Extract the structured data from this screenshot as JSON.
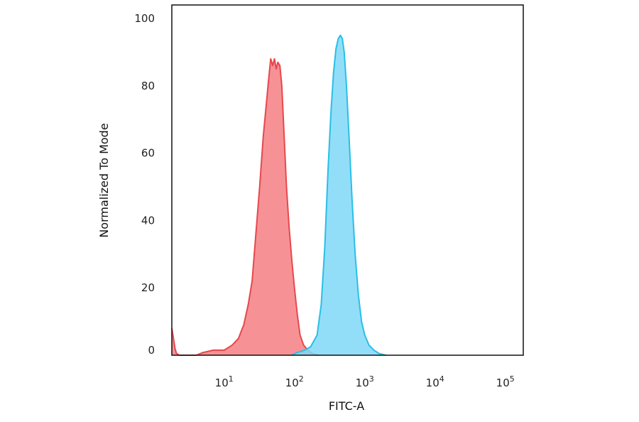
{
  "chart_data": {
    "type": "area",
    "xlabel": "FITC-A",
    "ylabel": "Normalized To Mode",
    "xscale": "log",
    "xlim": [
      1.8,
      180000
    ],
    "ylim": [
      0,
      104
    ],
    "grid": false,
    "yticks": [
      0,
      20,
      40,
      60,
      80,
      100
    ],
    "xticks": [
      {
        "value": 10,
        "base": "10",
        "exp": "1"
      },
      {
        "value": 100,
        "base": "10",
        "exp": "2"
      },
      {
        "value": 1000,
        "base": "10",
        "exp": "3"
      },
      {
        "value": 10000,
        "base": "10",
        "exp": "4"
      },
      {
        "value": 100000,
        "base": "10",
        "exp": "5"
      }
    ],
    "series": [
      {
        "color": "#e8474d",
        "fill": "#f47f83",
        "points": [
          [
            1.8,
            8
          ],
          [
            1.9,
            5
          ],
          [
            2.0,
            2
          ],
          [
            2.1,
            0.5
          ],
          [
            2.3,
            0
          ],
          [
            4,
            0
          ],
          [
            5,
            0.8
          ],
          [
            7,
            1.5
          ],
          [
            10,
            1.5
          ],
          [
            13,
            3
          ],
          [
            16,
            5
          ],
          [
            19,
            9
          ],
          [
            22,
            15
          ],
          [
            25,
            22
          ],
          [
            28,
            35
          ],
          [
            32,
            50
          ],
          [
            36,
            65
          ],
          [
            40,
            75
          ],
          [
            43,
            82
          ],
          [
            46,
            88
          ],
          [
            49,
            86
          ],
          [
            52,
            88
          ],
          [
            55,
            85
          ],
          [
            58,
            87
          ],
          [
            62,
            86
          ],
          [
            66,
            80
          ],
          [
            71,
            66
          ],
          [
            77,
            50
          ],
          [
            84,
            38
          ],
          [
            92,
            28
          ],
          [
            100,
            20
          ],
          [
            110,
            12
          ],
          [
            120,
            6
          ],
          [
            135,
            3
          ],
          [
            155,
            1.5
          ],
          [
            180,
            0.5
          ],
          [
            220,
            0
          ]
        ]
      },
      {
        "color": "#29bfe6",
        "fill": "#7fd8f8",
        "points": [
          [
            90,
            0
          ],
          [
            110,
            0.8
          ],
          [
            140,
            1.5
          ],
          [
            170,
            2.5
          ],
          [
            210,
            6
          ],
          [
            240,
            15
          ],
          [
            270,
            32
          ],
          [
            300,
            55
          ],
          [
            330,
            72
          ],
          [
            360,
            84
          ],
          [
            390,
            91
          ],
          [
            420,
            94
          ],
          [
            450,
            95
          ],
          [
            480,
            94
          ],
          [
            510,
            90
          ],
          [
            550,
            80
          ],
          [
            600,
            64
          ],
          [
            660,
            46
          ],
          [
            730,
            30
          ],
          [
            810,
            18
          ],
          [
            900,
            10
          ],
          [
            1000,
            6
          ],
          [
            1150,
            3
          ],
          [
            1350,
            1.5
          ],
          [
            1600,
            0.5
          ],
          [
            2000,
            0
          ]
        ]
      }
    ]
  }
}
